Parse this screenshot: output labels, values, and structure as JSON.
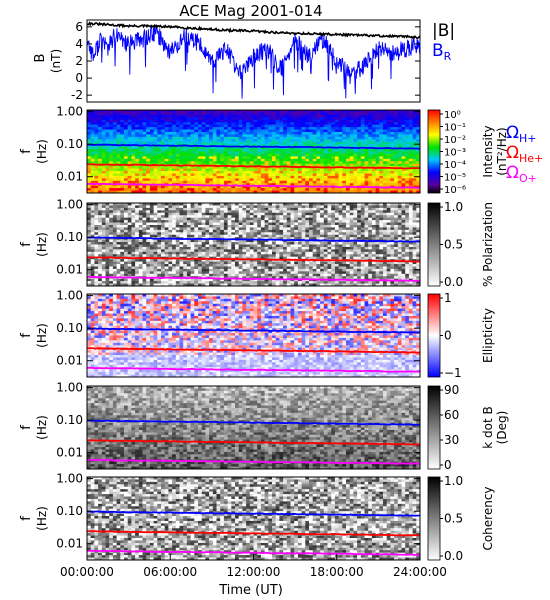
{
  "title": "ACE Mag 2001-014",
  "xlabel": "Time (UT)",
  "xticks": [
    "00:00:00",
    "06:00:00",
    "12:00:00",
    "18:00:00",
    "24:00:00"
  ],
  "legend_top": {
    "b_total": "|B|",
    "b_r": "B",
    "b_r_sub": "R"
  },
  "legend_gyro": [
    {
      "main": "Ω",
      "sub": "H+",
      "color": "#0000ff"
    },
    {
      "main": "Ω",
      "sub": "He+",
      "color": "#ff0000"
    },
    {
      "main": "Ω",
      "sub": "O+",
      "color": "#ff00ff"
    }
  ],
  "colors": {
    "b_total": "#000000",
    "b_r": "#0000ff",
    "h_plus": "#0000ff",
    "he_plus": "#ff0000",
    "o_plus": "#ff00ff"
  },
  "chart_data": [
    {
      "type": "line",
      "panel": "field",
      "ylabel": "B",
      "yunit": "(nT)",
      "yticks": [
        "-2",
        "0",
        "2",
        "4",
        "6"
      ],
      "ylim": [
        -2.8,
        6.8
      ],
      "xlim_hours": [
        0,
        24
      ],
      "series": [
        {
          "name": "|B|",
          "x": [
            0,
            1,
            2,
            3,
            4,
            6,
            8,
            10,
            12,
            14,
            16,
            18,
            20,
            22,
            24
          ],
          "values": [
            6.4,
            6.3,
            6.2,
            6.1,
            6.1,
            6.0,
            5.8,
            5.6,
            5.5,
            5.3,
            5.2,
            5.1,
            5.0,
            4.9,
            4.8
          ]
        },
        {
          "name": "BR",
          "x": [
            0,
            0.5,
            1,
            1.5,
            2,
            3,
            4,
            5,
            6,
            7,
            8,
            9,
            10,
            11,
            12,
            13,
            14,
            15,
            16,
            17,
            18,
            19,
            20,
            21,
            22,
            23,
            24
          ],
          "values": [
            4.5,
            2.5,
            4.8,
            3.5,
            5.0,
            4.0,
            4.6,
            5.4,
            3.0,
            4.8,
            4.2,
            2.0,
            3.5,
            0.5,
            2.5,
            3.5,
            1.0,
            4.5,
            2.5,
            4.6,
            2.0,
            0.3,
            1.5,
            3.5,
            2.8,
            3.5,
            4.0
          ]
        }
      ]
    },
    {
      "type": "heatmap",
      "panel": "intensity",
      "ylabel": "f",
      "yunit": "(Hz)",
      "yticks": [
        "0.01",
        "0.10",
        "1.00"
      ],
      "ylim_log10": [
        -2.5,
        0.05
      ],
      "colorbar": {
        "label": "Intensity",
        "unit": "(nT²/Hz)",
        "ticks": [
          "10⁰",
          "10⁻¹",
          "10⁻²",
          "10⁻³",
          "10⁻⁴",
          "10⁻⁵",
          "10⁻⁶"
        ],
        "scale": "rainbow"
      }
    },
    {
      "type": "heatmap",
      "panel": "polarization",
      "ylabel": "f",
      "yunit": "(Hz)",
      "yticks": [
        "0.01",
        "0.10",
        "1.00"
      ],
      "colorbar": {
        "label": "% Polarization",
        "ticks": [
          "1.0",
          "0.5",
          "0.0"
        ],
        "scale": "gray"
      }
    },
    {
      "type": "heatmap",
      "panel": "ellipticity",
      "ylabel": "f",
      "yunit": "(Hz)",
      "yticks": [
        "0.01",
        "0.10",
        "1.00"
      ],
      "colorbar": {
        "label": "Ellipticity",
        "ticks": [
          "1",
          "0",
          "−1"
        ],
        "scale": "bwr"
      }
    },
    {
      "type": "heatmap",
      "panel": "kdotb",
      "ylabel": "f",
      "yunit": "(Hz)",
      "yticks": [
        "0.01",
        "0.10",
        "1.00"
      ],
      "colorbar": {
        "label": "k dot B",
        "unit": "(Deg)",
        "ticks": [
          "90",
          "60",
          "30",
          "0"
        ],
        "scale": "gray"
      }
    },
    {
      "type": "heatmap",
      "panel": "coherency",
      "ylabel": "f",
      "yunit": "(Hz)",
      "yticks": [
        "0.01",
        "0.10",
        "1.00"
      ],
      "colorbar": {
        "label": "Coherency",
        "ticks": [
          "1.0",
          "0.5",
          "0.0"
        ],
        "scale": "gray"
      }
    },
    {
      "type": "line",
      "panel": "gyrofrequencies",
      "xlim_hours": [
        0,
        24
      ],
      "x": [
        0,
        24
      ],
      "series": [
        {
          "name": "ΩH+",
          "values": [
            0.097,
            0.073
          ]
        },
        {
          "name": "ΩHe+",
          "values": [
            0.024,
            0.018
          ]
        },
        {
          "name": "ΩO+",
          "values": [
            0.006,
            0.0046
          ]
        }
      ]
    }
  ]
}
